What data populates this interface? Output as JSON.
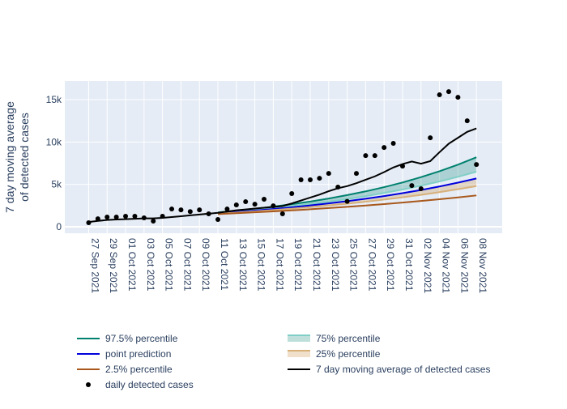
{
  "chart_data": {
    "type": "line",
    "ylabel": [
      "7 day moving average",
      "of detected cases"
    ],
    "x": [
      "2021-09-27",
      "2021-09-28",
      "2021-09-29",
      "2021-09-30",
      "2021-10-01",
      "2021-10-02",
      "2021-10-03",
      "2021-10-04",
      "2021-10-05",
      "2021-10-06",
      "2021-10-07",
      "2021-10-08",
      "2021-10-09",
      "2021-10-10",
      "2021-10-11",
      "2021-10-12",
      "2021-10-13",
      "2021-10-14",
      "2021-10-15",
      "2021-10-16",
      "2021-10-17",
      "2021-10-18",
      "2021-10-19",
      "2021-10-20",
      "2021-10-21",
      "2021-10-22",
      "2021-10-23",
      "2021-10-24",
      "2021-10-25",
      "2021-10-26",
      "2021-10-27",
      "2021-10-28",
      "2021-10-29",
      "2021-10-30",
      "2021-10-31",
      "2021-11-01",
      "2021-11-02",
      "2021-11-03",
      "2021-11-04",
      "2021-11-05",
      "2021-11-06",
      "2021-11-07",
      "2021-11-08"
    ],
    "xlim": [
      "2021-09-24T10:00:00Z",
      "2021-11-10T19:00:00Z"
    ],
    "xticks": [
      {
        "value": "2021-09-27",
        "label": "27 Sep 2021"
      },
      {
        "value": "2021-09-29",
        "label": "29 Sep 2021"
      },
      {
        "value": "2021-10-01",
        "label": "01 Oct 2021"
      },
      {
        "value": "2021-10-03",
        "label": "03 Oct 2021"
      },
      {
        "value": "2021-10-05",
        "label": "05 Oct 2021"
      },
      {
        "value": "2021-10-07",
        "label": "07 Oct 2021"
      },
      {
        "value": "2021-10-09",
        "label": "09 Oct 2021"
      },
      {
        "value": "2021-10-11",
        "label": "11 Oct 2021"
      },
      {
        "value": "2021-10-13",
        "label": "13 Oct 2021"
      },
      {
        "value": "2021-10-15",
        "label": "15 Oct 2021"
      },
      {
        "value": "2021-10-17",
        "label": "17 Oct 2021"
      },
      {
        "value": "2021-10-19",
        "label": "19 Oct 2021"
      },
      {
        "value": "2021-10-21",
        "label": "21 Oct 2021"
      },
      {
        "value": "2021-10-23",
        "label": "23 Oct 2021"
      },
      {
        "value": "2021-10-25",
        "label": "25 Oct 2021"
      },
      {
        "value": "2021-10-27",
        "label": "27 Oct 2021"
      },
      {
        "value": "2021-10-29",
        "label": "29 Oct 2021"
      },
      {
        "value": "2021-10-31",
        "label": "31 Oct 2021"
      },
      {
        "value": "2021-11-02",
        "label": "02 Nov 2021"
      },
      {
        "value": "2021-11-04",
        "label": "04 Nov 2021"
      },
      {
        "value": "2021-11-06",
        "label": "06 Nov 2021"
      },
      {
        "value": "2021-11-08",
        "label": "08 Nov 2021"
      }
    ],
    "ylim": [
      -760,
      17200
    ],
    "yticks": [
      0,
      {
        "value": 5000,
        "label": "5k"
      },
      {
        "value": 10000,
        "label": "10k"
      },
      {
        "value": 15000,
        "label": "15k"
      }
    ],
    "grid": true,
    "series": [
      {
        "name": "97.5% percentile",
        "color": "#00806e",
        "mode": "line",
        "x": [
          "2021-10-11",
          "2021-10-13",
          "2021-10-15",
          "2021-10-17",
          "2021-10-19",
          "2021-10-21",
          "2021-10-23",
          "2021-10-25",
          "2021-10-27",
          "2021-10-29",
          "2021-10-31",
          "2021-11-02",
          "2021-11-04",
          "2021-11-06",
          "2021-11-08"
        ],
        "values": [
          1700,
          1900,
          2130,
          2380,
          2670,
          2980,
          3340,
          3740,
          4180,
          4680,
          5230,
          5860,
          6550,
          7330,
          8200
        ]
      },
      {
        "name": "75% percentile",
        "color": "#80cfc6",
        "mode": "line",
        "fill": "tonexty",
        "fill_color": "rgba(0,128,110,0.25)",
        "x": [
          "2021-10-11",
          "2021-10-13",
          "2021-10-15",
          "2021-10-17",
          "2021-10-19",
          "2021-10-21",
          "2021-10-23",
          "2021-10-25",
          "2021-10-27",
          "2021-10-29",
          "2021-10-31",
          "2021-11-02",
          "2021-11-04",
          "2021-11-06",
          "2021-11-08"
        ],
        "values": [
          1650,
          1820,
          2010,
          2210,
          2440,
          2690,
          2970,
          3280,
          3610,
          3990,
          4400,
          4850,
          5350,
          5900,
          6500
        ]
      },
      {
        "name": "point prediction",
        "color": "#0000dd",
        "mode": "line",
        "x": [
          "2021-10-11",
          "2021-10-13",
          "2021-10-15",
          "2021-10-17",
          "2021-10-19",
          "2021-10-21",
          "2021-10-23",
          "2021-10-25",
          "2021-10-27",
          "2021-10-29",
          "2021-10-31",
          "2021-11-02",
          "2021-11-04",
          "2021-11-06",
          "2021-11-08"
        ],
        "values": [
          1600,
          1750,
          1920,
          2100,
          2300,
          2520,
          2760,
          3020,
          3310,
          3620,
          3970,
          4340,
          4760,
          5210,
          5700
        ]
      },
      {
        "name": "25% percentile",
        "color": "#d7b07a",
        "mode": "line",
        "fill": "tonexty",
        "fill_color": "rgba(205,150,80,0.3)",
        "x": [
          "2021-10-11",
          "2021-10-13",
          "2021-10-15",
          "2021-10-17",
          "2021-10-19",
          "2021-10-21",
          "2021-10-23",
          "2021-10-25",
          "2021-10-27",
          "2021-10-29",
          "2021-10-31",
          "2021-11-02",
          "2021-11-04",
          "2021-11-06",
          "2021-11-08"
        ],
        "values": [
          1550,
          1680,
          1820,
          1980,
          2140,
          2320,
          2520,
          2730,
          2960,
          3210,
          3480,
          3770,
          4090,
          4430,
          4800
        ]
      },
      {
        "name": "2.5% percentile",
        "color": "#a8581c",
        "mode": "line",
        "x": [
          "2021-10-11",
          "2021-10-13",
          "2021-10-15",
          "2021-10-17",
          "2021-10-19",
          "2021-10-21",
          "2021-10-23",
          "2021-10-25",
          "2021-10-27",
          "2021-10-29",
          "2021-10-31",
          "2021-11-02",
          "2021-11-04",
          "2021-11-06",
          "2021-11-08"
        ],
        "values": [
          1500,
          1600,
          1710,
          1820,
          1940,
          2070,
          2210,
          2360,
          2510,
          2680,
          2860,
          3050,
          3250,
          3470,
          3700
        ]
      },
      {
        "name": "7 day moving average of detected cases",
        "color": "#000000",
        "mode": "line",
        "values": [
          570,
          700,
          800,
          860,
          900,
          950,
          1000,
          1000,
          1050,
          1150,
          1250,
          1350,
          1450,
          1550,
          1650,
          1800,
          1950,
          2050,
          2150,
          2250,
          2350,
          2450,
          2750,
          3100,
          3450,
          3800,
          4200,
          4550,
          4800,
          5150,
          5550,
          5950,
          6450,
          7000,
          7400,
          7700,
          7450,
          7750,
          8800,
          9800,
          10500,
          11200,
          11600
        ]
      },
      {
        "name": "daily detected cases",
        "color": "#000000",
        "mode": "markers",
        "values": [
          480,
          950,
          1150,
          1150,
          1250,
          1250,
          1050,
          670,
          1250,
          2100,
          2000,
          1800,
          2000,
          1530,
          860,
          2100,
          2580,
          2960,
          2670,
          3250,
          2480,
          1530,
          3920,
          5540,
          5540,
          5730,
          6300,
          4680,
          3000,
          6300,
          8400,
          8400,
          9360,
          9840,
          7160,
          4870,
          4490,
          10500,
          15570,
          15950,
          15280,
          12510,
          7350
        ]
      }
    ]
  }
}
